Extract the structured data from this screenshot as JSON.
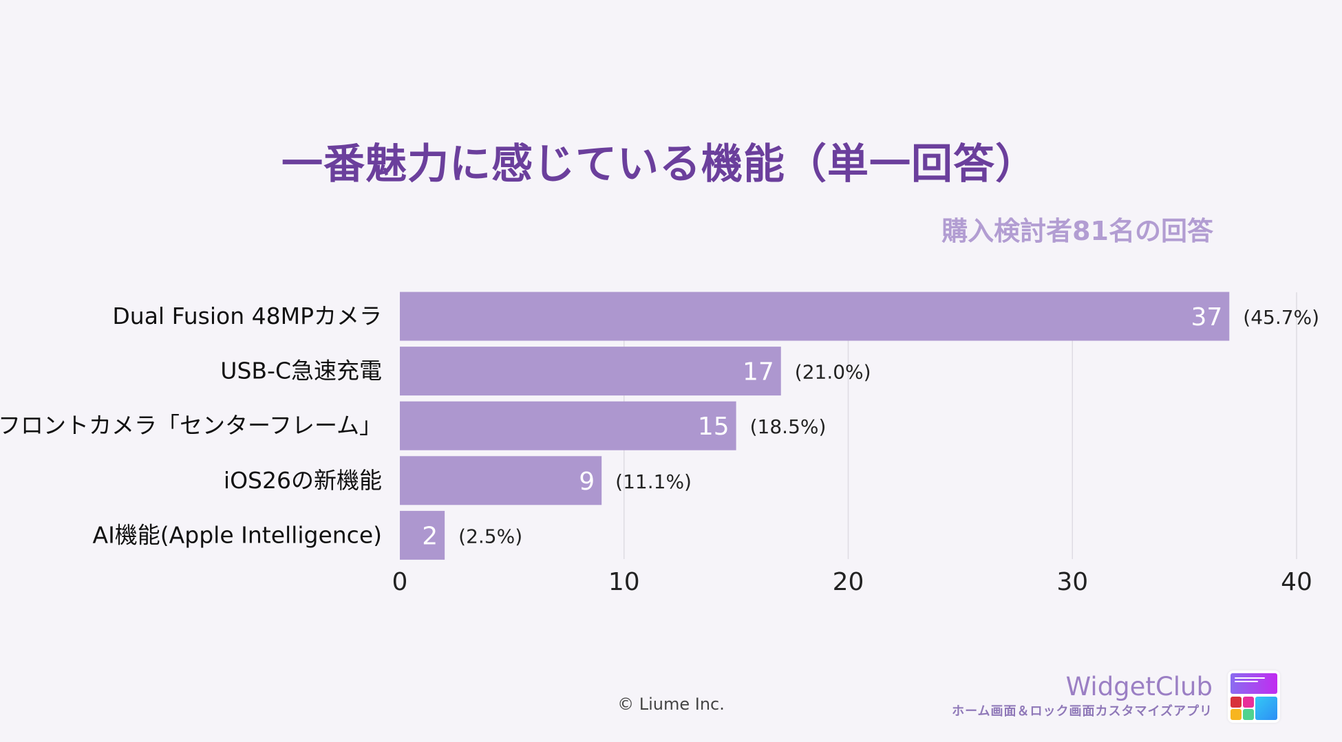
{
  "chart_data": {
    "type": "bar",
    "orientation": "horizontal",
    "title": "一番魅力に感じている機能（単一回答）",
    "subtitle": "購入検討者81名の回答",
    "categories": [
      "Dual Fusion 48MPカメラ",
      "USB-C急速充電",
      "フロントカメラ「センターフレーム」",
      "iOS26の新機能",
      "AI機能(Apple Intelligence)"
    ],
    "values": [
      37,
      17,
      15,
      9,
      2
    ],
    "value_labels": [
      "37",
      "17",
      "15",
      "9",
      "2"
    ],
    "percent_labels": [
      "(45.7%)",
      "(21.0%)",
      "(18.5%)",
      "(11.1%)",
      "(2.5%)"
    ],
    "xlim": [
      0,
      40
    ],
    "xticks": [
      "0",
      "10",
      "20",
      "30",
      "40"
    ],
    "grid": true,
    "bar_color": "#ad97cf",
    "xlabel": "",
    "ylabel": ""
  },
  "footer": {
    "copyright": "© Liume Inc.",
    "brand_name": "WidgetClub",
    "brand_tagline": "ホーム画面＆ロック画面カスタマイズアプリ"
  },
  "colors": {
    "background": "#f6f4f9",
    "title": "#6b3f9c",
    "subtitle": "#b29dd2"
  }
}
